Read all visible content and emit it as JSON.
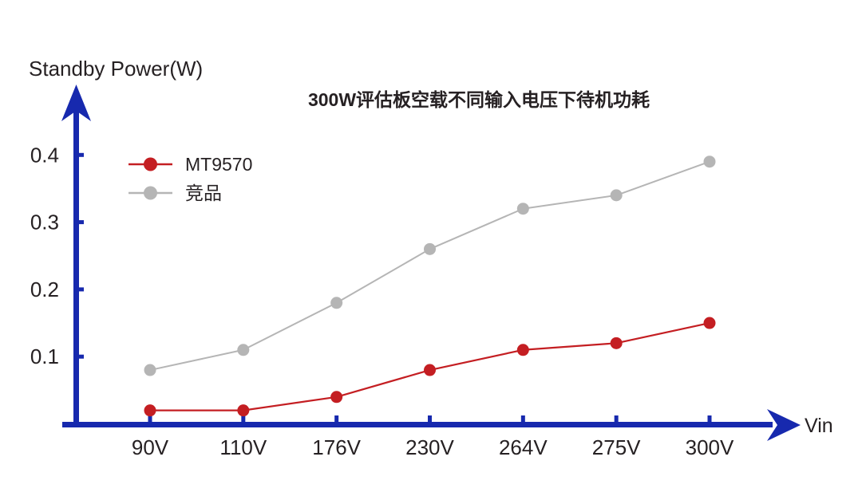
{
  "header": {
    "title": "300W评估板空载不同输入电压下待机功耗"
  },
  "axes": {
    "y_label": "Standby Power(W)",
    "x_label": "Vin",
    "x_tick_labels": [
      "90V",
      "110V",
      "176V",
      "230V",
      "264V",
      "275V",
      "300V"
    ],
    "y_tick_labels": [
      "0.1",
      "0.2",
      "0.3",
      "0.4"
    ],
    "axis_color": "#1729ae",
    "text_color": "#262123"
  },
  "legend": {
    "items": [
      {
        "label": "MT9570",
        "color": "#c41e22"
      },
      {
        "label": "竞品",
        "color": "#b5b5b5"
      }
    ]
  },
  "chart_data": {
    "type": "line",
    "title": "300W评估板空载不同输入电压下待机功耗",
    "xlabel": "Vin",
    "ylabel": "Standby Power(W)",
    "categories": [
      "90V",
      "110V",
      "176V",
      "230V",
      "264V",
      "275V",
      "300V"
    ],
    "series": [
      {
        "name": "MT9570",
        "color": "#c41e22",
        "values": [
          0.02,
          0.02,
          0.04,
          0.08,
          0.11,
          0.12,
          0.15
        ]
      },
      {
        "name": "竞品",
        "color": "#b5b5b5",
        "values": [
          0.08,
          0.11,
          0.18,
          0.26,
          0.32,
          0.34,
          0.39
        ]
      }
    ],
    "yticks": [
      0.1,
      0.2,
      0.3,
      0.4
    ],
    "ylim": [
      0,
      0.45
    ],
    "grid": false,
    "legend_position": "top-left-inside",
    "marker": "circle"
  }
}
